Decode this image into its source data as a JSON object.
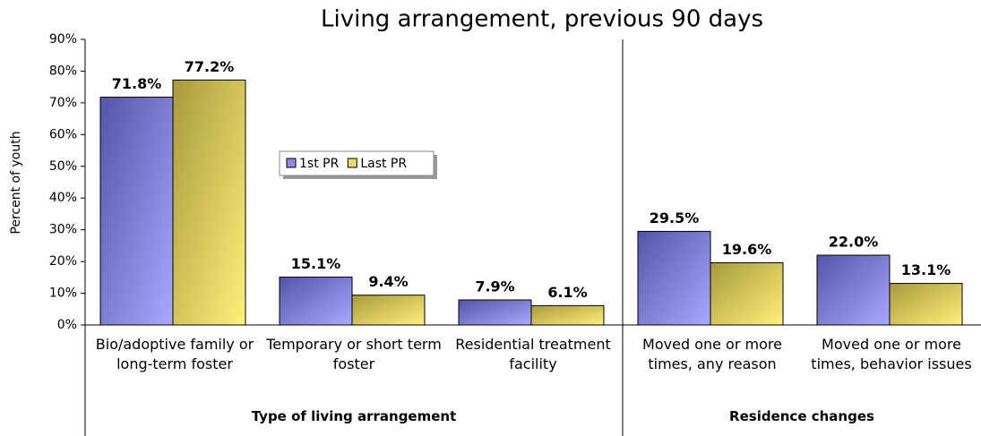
{
  "chart_data": {
    "type": "bar",
    "title": "Living arrangement, previous 90 days",
    "y_label": "Percent of youth",
    "categories": [
      "Bio/adoptive family or long-term foster",
      "Temporary or short term foster",
      "Residential treatment facility",
      "Moved one or more times, any reason",
      "Moved one or more times, behavior issues"
    ],
    "groups": [
      {
        "label": "Type of living arrangement",
        "count": 3
      },
      {
        "label": "Residence changes",
        "count": 2
      }
    ],
    "series": [
      {
        "name": "1st PR",
        "color": "#8b8be8",
        "values": [
          71.8,
          15.1,
          7.9,
          29.5,
          22.0
        ],
        "value_labels": [
          "71.8%",
          "15.1%",
          "7.9%",
          "29.5%",
          "22.0%"
        ]
      },
      {
        "name": "Last PR",
        "color": "#e8d86e",
        "values": [
          77.2,
          9.4,
          6.1,
          19.6,
          13.1
        ],
        "value_labels": [
          "77.2%",
          "9.4%",
          "6.1%",
          "19.6%",
          "13.1%"
        ]
      }
    ],
    "ylim": [
      0,
      90
    ],
    "yticks": [
      {
        "value": 0,
        "label": "0%"
      },
      {
        "value": 10,
        "label": "10%"
      },
      {
        "value": 20,
        "label": "20%"
      },
      {
        "value": 30,
        "label": "30%"
      },
      {
        "value": 40,
        "label": "40%"
      },
      {
        "value": 50,
        "label": "50%"
      },
      {
        "value": 60,
        "label": "60%"
      },
      {
        "value": 70,
        "label": "70%"
      },
      {
        "value": 80,
        "label": "80%"
      },
      {
        "value": 90,
        "label": "90%"
      }
    ],
    "legend": "center"
  }
}
